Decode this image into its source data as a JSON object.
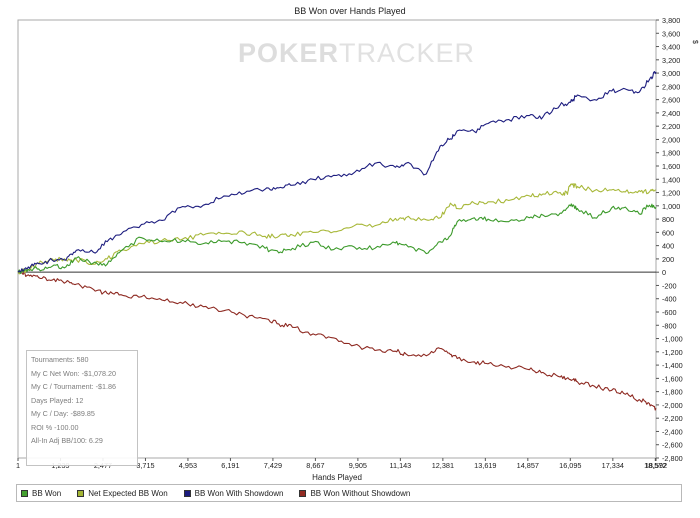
{
  "chart_data": {
    "type": "line",
    "title": "BB Won over Hands Played",
    "xlabel": "Hands Played",
    "ylabel": "$",
    "xlim": [
      1,
      18592
    ],
    "ylim": [
      -2800,
      3800
    ],
    "x_ticks": [
      "1",
      "1,239",
      "2,477",
      "3,715",
      "4,953",
      "6,191",
      "7,429",
      "8,667",
      "9,905",
      "11,143",
      "12,381",
      "13,619",
      "14,857",
      "16,095",
      "17,334",
      "18,572",
      "18,592"
    ],
    "x_tick_values": [
      1,
      1239,
      2477,
      3715,
      4953,
      6191,
      7429,
      8667,
      9905,
      11143,
      12381,
      13619,
      14857,
      16095,
      17334,
      18572,
      18592
    ],
    "y_ticks": [
      3800,
      3600,
      3400,
      3200,
      3000,
      2800,
      2600,
      2400,
      2200,
      2000,
      1800,
      1600,
      1400,
      1200,
      1000,
      800,
      600,
      400,
      200,
      0,
      -200,
      -400,
      -600,
      -800,
      -1000,
      -1200,
      -1400,
      -1600,
      -1800,
      -2000,
      -2200,
      -2400,
      -2600,
      -2800
    ],
    "y_tick_labels": [
      "3,800",
      "3,600",
      "3,400",
      "3,200",
      "3,000",
      "2,800",
      "2,600",
      "2,400",
      "2,200",
      "2,000",
      "1,800",
      "1,600",
      "1,400",
      "1,200",
      "1,000",
      "800",
      "600",
      "400",
      "200",
      "0",
      "-200",
      "-400",
      "-600",
      "-800",
      "-1,000",
      "-1,200",
      "-1,400",
      "-1,600",
      "-1,800",
      "-2,000",
      "-2,200",
      "-2,400",
      "-2,600",
      "-2,800"
    ],
    "grid": false,
    "legend_position": "bottom",
    "series": [
      {
        "name": "BB Won",
        "color": "#3c9a2b",
        "legend_color": "#43a02f",
        "x": [
          1,
          300,
          600,
          1000,
          1400,
          1700,
          2200,
          2600,
          3000,
          3600,
          4200,
          4800,
          5400,
          6000,
          6600,
          7200,
          7600,
          8000,
          8600,
          9200,
          9800,
          10400,
          11000,
          11300,
          11900,
          12300,
          12600,
          12800,
          13300,
          13700,
          14300,
          14900,
          15300,
          15800,
          16100,
          16300,
          16800,
          17300,
          17700,
          18100,
          18400,
          18592
        ],
        "y": [
          0,
          40,
          50,
          90,
          80,
          210,
          140,
          120,
          320,
          520,
          460,
          480,
          430,
          470,
          450,
          360,
          290,
          360,
          450,
          340,
          380,
          360,
          440,
          420,
          280,
          460,
          550,
          760,
          820,
          800,
          760,
          820,
          860,
          890,
          1000,
          960,
          820,
          970,
          980,
          880,
          1010,
          980
        ]
      },
      {
        "name": "Net Expected BB Won",
        "color": "#a8b83a",
        "legend_color": "#a3b533",
        "x": [
          1,
          300,
          600,
          1000,
          1400,
          1700,
          2200,
          2600,
          3000,
          3600,
          4200,
          4800,
          5400,
          6000,
          6600,
          7200,
          7600,
          8000,
          8600,
          9200,
          9800,
          10400,
          11000,
          11300,
          11900,
          12300,
          12600,
          12800,
          13300,
          13700,
          14300,
          14900,
          15300,
          15800,
          16000,
          16100,
          16300,
          16800,
          17300,
          17700,
          18100,
          18400,
          18592
        ],
        "y": [
          0,
          40,
          130,
          200,
          180,
          190,
          120,
          200,
          320,
          430,
          480,
          500,
          560,
          580,
          600,
          540,
          540,
          560,
          600,
          610,
          700,
          700,
          810,
          820,
          790,
          820,
          1040,
          960,
          1040,
          1060,
          1080,
          1150,
          1180,
          1200,
          1190,
          1320,
          1290,
          1230,
          1240,
          1210,
          1230,
          1210,
          1240
        ]
      },
      {
        "name": "BB Won With Showdown",
        "color": "#1d1d7f",
        "legend_color": "#1b1b7e",
        "x": [
          1,
          300,
          600,
          1000,
          1400,
          1700,
          2200,
          2600,
          3000,
          3600,
          4200,
          4800,
          5400,
          6000,
          6600,
          7200,
          7600,
          8000,
          8600,
          9200,
          9800,
          10400,
          11000,
          11300,
          11900,
          12300,
          12600,
          12800,
          13300,
          13700,
          14300,
          14900,
          15300,
          15800,
          16100,
          16300,
          16800,
          17300,
          17700,
          18100,
          18400,
          18592
        ],
        "y": [
          0,
          80,
          130,
          180,
          180,
          330,
          300,
          460,
          570,
          720,
          780,
          990,
          1010,
          1150,
          1190,
          1250,
          1270,
          1310,
          1400,
          1460,
          1500,
          1640,
          1580,
          1640,
          1480,
          1900,
          2010,
          2130,
          2120,
          2240,
          2300,
          2360,
          2340,
          2520,
          2560,
          2670,
          2600,
          2730,
          2760,
          2710,
          2900,
          3020
        ]
      },
      {
        "name": "BB Won Without Showdown",
        "color": "#8e2a22",
        "legend_color": "#922a22",
        "x": [
          1,
          300,
          600,
          1000,
          1400,
          1700,
          2200,
          2600,
          3000,
          3600,
          4200,
          4800,
          5400,
          6000,
          6600,
          7200,
          7600,
          8000,
          8600,
          9200,
          9800,
          10400,
          11000,
          11300,
          11900,
          12300,
          12600,
          12800,
          13300,
          13700,
          14300,
          14900,
          15300,
          15800,
          16100,
          16300,
          16800,
          17300,
          17700,
          18100,
          18400,
          18592
        ],
        "y": [
          0,
          -40,
          -80,
          -120,
          -150,
          -180,
          -260,
          -320,
          -340,
          -370,
          -420,
          -470,
          -520,
          -580,
          -650,
          -700,
          -780,
          -830,
          -930,
          -990,
          -1100,
          -1180,
          -1190,
          -1230,
          -1260,
          -1150,
          -1240,
          -1300,
          -1350,
          -1380,
          -1420,
          -1470,
          -1510,
          -1580,
          -1620,
          -1650,
          -1720,
          -1780,
          -1840,
          -1920,
          -1980,
          -2050
        ]
      }
    ]
  },
  "watermark": {
    "bold": "POKER",
    "light": "TRACKER"
  },
  "stats": [
    "Tournaments: 580",
    "My C Net Won: -$1,078.20",
    "My C / Tournament: -$1.86",
    "Days Played: 12",
    "My C / Day: -$89.85",
    "ROI % -100.00",
    "All-In Adj BB/100: 6.29"
  ]
}
